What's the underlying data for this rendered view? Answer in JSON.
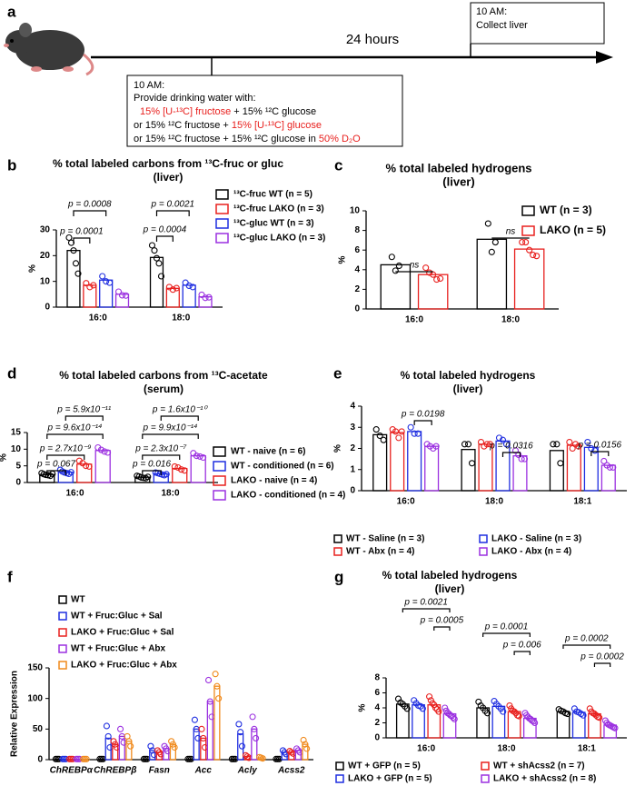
{
  "panel_labels": [
    "a",
    "b",
    "c",
    "d",
    "e",
    "f",
    "g"
  ],
  "diagram": {
    "duration": "24 hours",
    "end_time": "10 AM:",
    "end_action": "Collect liver",
    "start_time": "10 AM:",
    "start_action": "Provide drinking water with:",
    "options": [
      [
        {
          "text": "15% [U-¹³C] fructose",
          "color": "#e8201e"
        },
        {
          "text": " + 15% ¹²C glucose",
          "color": "#000000"
        }
      ],
      [
        {
          "text": "or 15% ¹²C fructose + ",
          "color": "#000000"
        },
        {
          "text": "15% [U-¹³C] glucose",
          "color": "#e8201e"
        }
      ],
      [
        {
          "text": "or 15% ¹²C fructose + 15% ¹²C glucose in ",
          "color": "#000000"
        },
        {
          "text": "50% D₂O",
          "color": "#e8201e"
        }
      ]
    ]
  },
  "chart_data": [
    {
      "type": "bar",
      "title": "% total labeled carbons from ¹³C-fruc or gluc",
      "subtitle": "(liver)",
      "ylabel": "%",
      "categories": [
        "16:0",
        "18:0"
      ],
      "series": [
        {
          "name": "¹³C-fruc WT (n = 5)",
          "color": "#000000",
          "values": [
            22,
            19.3
          ],
          "points": [
            [
              27,
              25,
              22,
              17,
              13
            ],
            [
              24,
              22,
              19,
              17,
              12
            ]
          ]
        },
        {
          "name": "¹³C-fruc LAKO (n = 3)",
          "color": "#e8201e",
          "values": [
            8.5,
            7.3
          ],
          "points": [
            [
              9.3,
              7.8,
              8.5
            ],
            [
              7.8,
              6.8,
              7.4
            ]
          ]
        },
        {
          "name": "¹³C-gluc WT (n = 3)",
          "color": "#1f2ee0",
          "values": [
            10.5,
            8.5
          ],
          "points": [
            [
              12,
              10,
              9.5
            ],
            [
              9.5,
              8.3,
              7.8
            ]
          ]
        },
        {
          "name": "¹³C-gluc LAKO (n = 3)",
          "color": "#9b30e0",
          "values": [
            5,
            4
          ],
          "points": [
            [
              6,
              4.6,
              4.5
            ],
            [
              4.8,
              3.6,
              3.8
            ]
          ]
        }
      ],
      "ylim": [
        0,
        30
      ],
      "yticks": [
        0,
        10,
        20,
        30
      ],
      "annotations": [
        "p = 0.0008",
        "p = 0.0001",
        "p = 0.0021",
        "p = 0.0004"
      ]
    },
    {
      "type": "bar",
      "title": "% total labeled hydrogens",
      "subtitle": "(liver)",
      "ylabel": "%",
      "categories": [
        "16:0",
        "18:0"
      ],
      "series": [
        {
          "name": "WT (n = 3)",
          "color": "#000000",
          "values": [
            4.5,
            7.1
          ],
          "points": [
            [
              5.3,
              3.9,
              4.4
            ],
            [
              8.7,
              5.8,
              6.8
            ]
          ]
        },
        {
          "name": "LAKO (n = 5)",
          "color": "#e8201e",
          "values": [
            3.5,
            6.1
          ],
          "points": [
            [
              4.2,
              3.7,
              3.5,
              3,
              3.1
            ],
            [
              6.8,
              6.8,
              6,
              5.5,
              5.4
            ]
          ]
        }
      ],
      "ylim": [
        0,
        10
      ],
      "yticks": [
        0,
        2,
        4,
        6,
        8,
        10
      ],
      "annotations": [
        "ns",
        "ns"
      ]
    },
    {
      "type": "bar",
      "title": "% total labeled carbons from ¹³C-acetate",
      "subtitle": "(serum)",
      "ylabel": "%",
      "categories": [
        "16:0",
        "18:0"
      ],
      "series": [
        {
          "name": "WT - naive (n = 6)",
          "color": "#000000",
          "values": [
            2.4,
            1.6
          ],
          "points": [
            [
              2.8,
              2.5,
              2.3,
              2.2,
              2,
              2.6
            ],
            [
              2,
              1.8,
              1.5,
              1.4,
              1.3,
              1.7
            ]
          ]
        },
        {
          "name": "WT - conditioned (n = 6)",
          "color": "#1f2ee0",
          "values": [
            3.1,
            2.6
          ],
          "points": [
            [
              3.8,
              3.3,
              3,
              2.8,
              2.6,
              3.1
            ],
            [
              3,
              2.8,
              2.6,
              2.4,
              2.2,
              2.5
            ]
          ]
        },
        {
          "name": "LAKO - naive (n = 4)",
          "color": "#e8201e",
          "values": [
            5.5,
            4.2
          ],
          "points": [
            [
              6.5,
              5.8,
              5,
              4.8
            ],
            [
              4.8,
              4.5,
              3.9,
              3.6
            ]
          ]
        },
        {
          "name": "LAKO - conditioned (n = 4)",
          "color": "#9b30e0",
          "values": [
            9.6,
            8
          ],
          "points": [
            [
              10.5,
              9.8,
              9.3,
              9
            ],
            [
              8.8,
              8,
              7.8,
              7.5
            ]
          ]
        }
      ],
      "ylim": [
        0,
        15
      ],
      "yticks": [
        0,
        5,
        10,
        15
      ],
      "annotations": [
        "p = 5.9x10⁻¹¹",
        "p = 9.6x10⁻¹⁴",
        "p = 2.7x10⁻⁹",
        "p = 0.067",
        "p = 1.6x10⁻¹⁰",
        "p = 9.9x10⁻¹⁴",
        "p = 2.3x10⁻⁷",
        "p = 0.016"
      ]
    },
    {
      "type": "bar",
      "title": "% total labeled hydrogens",
      "subtitle": "(liver)",
      "ylabel": "%",
      "categories": [
        "16:0",
        "18:0",
        "18:1"
      ],
      "series": [
        {
          "name": "WT - Saline (n = 3)",
          "color": "#000000",
          "values": [
            2.65,
            1.95,
            1.9
          ],
          "points": [
            [
              2.9,
              2.6,
              2.4
            ],
            [
              2.2,
              2.2,
              1.3
            ],
            [
              2.2,
              2.2,
              1.3
            ]
          ]
        },
        {
          "name": "WT - Abx (n = 4)",
          "color": "#e8201e",
          "values": [
            2.75,
            2.2,
            2.15
          ],
          "points": [
            [
              2.9,
              2.8,
              2.5,
              2.8
            ],
            [
              2.3,
              2.1,
              2.2,
              2.2
            ],
            [
              2.3,
              2,
              2.2,
              2.1
            ]
          ]
        },
        {
          "name": "LAKO - Saline (n = 3)",
          "color": "#1f2ee0",
          "values": [
            2.8,
            2.35,
            2.05
          ],
          "points": [
            [
              3,
              2.7,
              2.7
            ],
            [
              2.5,
              2.4,
              2.2
            ],
            [
              2.3,
              2,
              1.9
            ]
          ]
        },
        {
          "name": "LAKO - Abx (n = 4)",
          "color": "#9b30e0",
          "values": [
            2.1,
            1.65,
            1.2
          ],
          "points": [
            [
              2.2,
              2.1,
              2,
              2.1
            ],
            [
              1.9,
              1.7,
              1.5,
              1.5
            ],
            [
              1.4,
              1.2,
              1.1,
              1.1
            ]
          ]
        }
      ],
      "ylim": [
        0,
        4
      ],
      "yticks": [
        0,
        1,
        2,
        3,
        4
      ],
      "annotations": [
        "p = 0.0198",
        "p = 0.0316",
        "p = 0.0156"
      ]
    },
    {
      "type": "bar",
      "ylabel": "Relative Expression",
      "italic_categories": true,
      "categories": [
        "ChREBPα",
        "ChREBPβ",
        "Fasn",
        "Acc",
        "Acly",
        "Acss2"
      ],
      "series": [
        {
          "name": "WT",
          "color": "#000000",
          "values": [
            1,
            1,
            1,
            1,
            1,
            1
          ],
          "points": [
            [
              1,
              1,
              1
            ],
            [
              1,
              1,
              1
            ],
            [
              1,
              1,
              1
            ],
            [
              1,
              1,
              1
            ],
            [
              1,
              1,
              1
            ],
            [
              1,
              1,
              1
            ]
          ]
        },
        {
          "name": "WT + Fruc:Gluc + Sal",
          "color": "#1f2ee0",
          "values": [
            1,
            35,
            15,
            50,
            42,
            12
          ],
          "points": [
            [
              1,
              1,
              1
            ],
            [
              55,
              38,
              20
            ],
            [
              22,
              15,
              8
            ],
            [
              65,
              50,
              35
            ],
            [
              58,
              45,
              22
            ],
            [
              15,
              12,
              9
            ]
          ]
        },
        {
          "name": "LAKO + Fruc:Gluc + Sal",
          "color": "#e8201e",
          "values": [
            1,
            25,
            12,
            35,
            5,
            12
          ],
          "points": [
            [
              1,
              1,
              1
            ],
            [
              30,
              25,
              20
            ],
            [
              15,
              12,
              9
            ],
            [
              50,
              35,
              20
            ],
            [
              7,
              5,
              3
            ],
            [
              14,
              12,
              10
            ]
          ]
        },
        {
          "name": "WT + Fruc:Gluc + Abx",
          "color": "#9b30e0",
          "values": [
            1,
            38,
            18,
            95,
            50,
            15
          ],
          "points": [
            [
              1,
              1,
              1
            ],
            [
              50,
              38,
              28
            ],
            [
              22,
              18,
              14
            ],
            [
              130,
              95,
              70
            ],
            [
              70,
              50,
              35
            ],
            [
              18,
              15,
              12
            ]
          ]
        },
        {
          "name": "LAKO + Fruc:Gluc + Abx",
          "color": "#f08a1c",
          "values": [
            1,
            30,
            25,
            120,
            3,
            25
          ],
          "points": [
            [
              1,
              1,
              1
            ],
            [
              38,
              30,
              22
            ],
            [
              30,
              25,
              20
            ],
            [
              140,
              120,
              100
            ],
            [
              4,
              3,
              2
            ],
            [
              32,
              25,
              18
            ]
          ]
        }
      ],
      "ylim": [
        0,
        150
      ],
      "yticks": [
        0,
        50,
        100,
        150
      ],
      "annotations": []
    },
    {
      "type": "bar",
      "title": "% total labeled hydrogens",
      "subtitle": "(liver)",
      "ylabel": "%",
      "categories": [
        "16:0",
        "18:0",
        "18:1"
      ],
      "series": [
        {
          "name": "WT + GFP (n = 5)",
          "color": "#000000",
          "values": [
            4.5,
            4,
            3.5
          ],
          "points": [
            [
              5.2,
              4.7,
              4.5,
              4.2,
              3.9
            ],
            [
              4.8,
              4.3,
              4,
              3.6,
              3.3
            ],
            [
              3.8,
              3.6,
              3.5,
              3.3,
              3.2
            ]
          ]
        },
        {
          "name": "LAKO + GFP (n = 5)",
          "color": "#1f2ee0",
          "values": [
            4.4,
            4.2,
            3.4
          ],
          "points": [
            [
              5,
              4.6,
              4.3,
              4.2,
              3.9
            ],
            [
              4.9,
              4.5,
              4.2,
              3.9,
              3.5
            ],
            [
              3.9,
              3.5,
              3.4,
              3.2,
              3
            ]
          ]
        },
        {
          "name": "WT + shAcss2 (n = 7)",
          "color": "#e8201e",
          "values": [
            4.4,
            3.5,
            3.2
          ],
          "points": [
            [
              5.5,
              5,
              4.6,
              4.4,
              4,
              3.8,
              3.5
            ],
            [
              4.3,
              3.9,
              3.6,
              3.5,
              3.3,
              3,
              2.9
            ],
            [
              3.9,
              3.5,
              3.3,
              3.2,
              3,
              2.8,
              2.7
            ]
          ]
        },
        {
          "name": "LAKO + shAcss2 (n = 8)",
          "color": "#9b30e0",
          "values": [
            3.2,
            2.6,
            1.7
          ],
          "points": [
            [
              4,
              3.6,
              3.3,
              3.2,
              3,
              2.9,
              2.7,
              2.5
            ],
            [
              3.3,
              3,
              2.8,
              2.6,
              2.5,
              2.3,
              2.2,
              2
            ],
            [
              2.3,
              2,
              1.8,
              1.7,
              1.6,
              1.5,
              1.4,
              1.3
            ]
          ]
        }
      ],
      "ylim": [
        0,
        8
      ],
      "yticks": [
        0,
        2,
        4,
        6,
        8
      ],
      "annotations": [
        "p = 0.0021",
        "p = 0.0005",
        "p = 0.0001",
        "p = 0.006",
        "p = 0.0002",
        "p = 0.0002"
      ]
    }
  ]
}
